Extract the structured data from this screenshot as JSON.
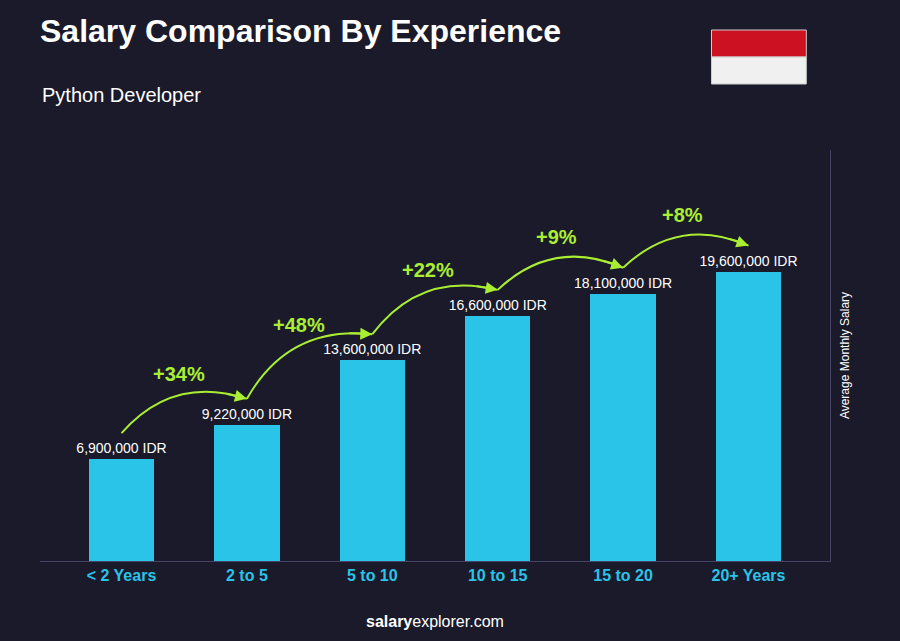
{
  "chart_data": {
    "type": "bar",
    "title": "Salary Comparison By Experience",
    "subtitle": "Python Developer",
    "ylabel": "Average Monthly Salary",
    "categories": [
      "< 2 Years",
      "2 to 5",
      "5 to 10",
      "10 to 15",
      "15 to 20",
      "20+ Years"
    ],
    "values": [
      6900000,
      9220000,
      13600000,
      16600000,
      18100000,
      19600000
    ],
    "value_labels": [
      "6,900,000 IDR",
      "9,220,000 IDR",
      "13,600,000 IDR",
      "16,600,000 IDR",
      "18,100,000 IDR",
      "19,600,000 IDR"
    ],
    "data_labels": true,
    "color": "#29c4e8",
    "ylim": [
      0,
      27832000
    ],
    "tick_labels": "x",
    "grid": false,
    "annotations": [
      {
        "text": "+34%",
        "from": "< 2 Years",
        "to": "2 to 5",
        "color": "#aaee33"
      },
      {
        "text": "+48%",
        "from": "2 to 5",
        "to": "5 to 10",
        "color": "#aaee33"
      },
      {
        "text": "+22%",
        "from": "5 to 10",
        "to": "10 to 15",
        "color": "#aaee33"
      },
      {
        "text": "+9%",
        "from": "10 to 15",
        "to": "15 to 20",
        "color": "#aaee33"
      },
      {
        "text": "+8%",
        "from": "15 to 20",
        "to": "20+ Years",
        "color": "#aaee33"
      },
      {
        "text": "salary"
      },
      {
        "text": "explorer.com"
      }
    ]
  }
}
